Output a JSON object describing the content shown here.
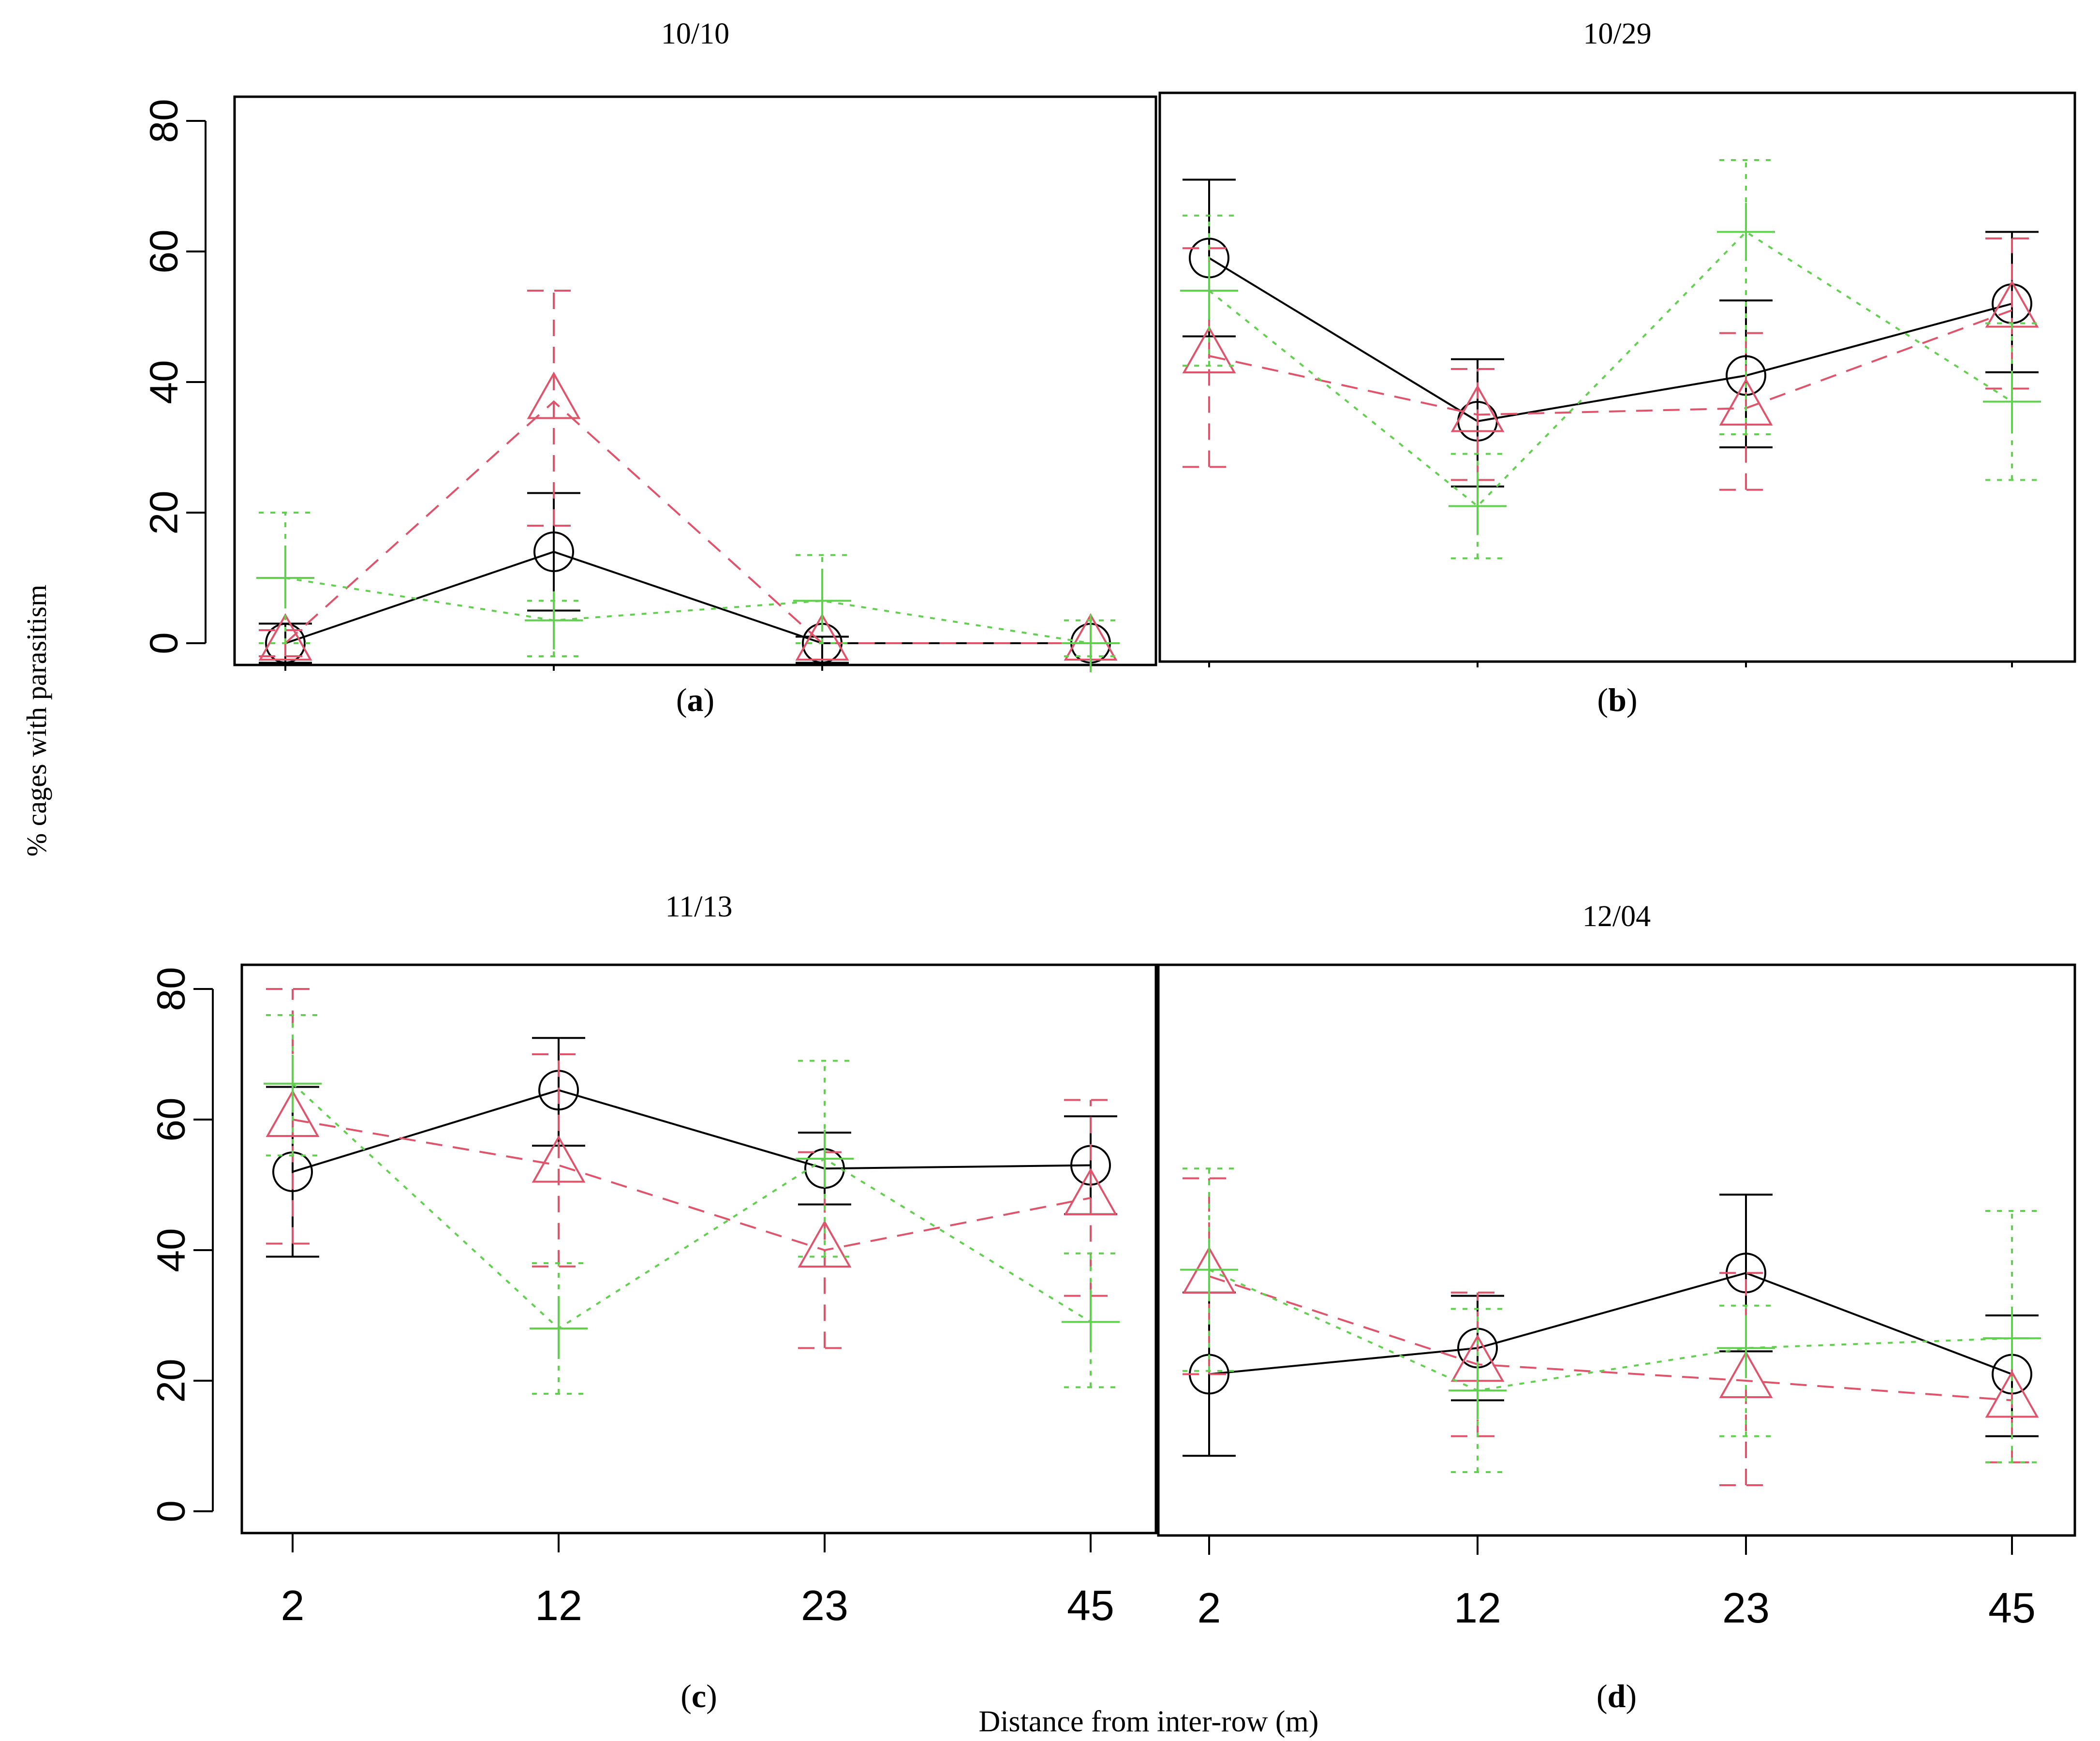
{
  "figure": {
    "ylabel": "% cages with parasitism",
    "xlabel": "Distance from inter-row (m)"
  },
  "colors": {
    "series_a": "#000000",
    "series_b": "#df536b",
    "series_c": "#61d04f"
  },
  "chart_data": [
    {
      "type": "line",
      "title": "10/10",
      "panel_label": "(a)",
      "panel_letter": "a",
      "x": [
        2,
        12,
        23,
        45
      ],
      "categories": [
        "2",
        "12",
        "23",
        "45"
      ],
      "ylim": [
        0,
        80
      ],
      "yticks": [
        "0",
        "20",
        "40",
        "60",
        "80"
      ],
      "series": [
        {
          "name": "circle",
          "values": [
            0,
            14,
            0,
            0
          ],
          "lower": [
            -3,
            5,
            -3,
            null
          ],
          "upper": [
            3,
            23,
            1,
            null
          ]
        },
        {
          "name": "triangle",
          "values": [
            0,
            37,
            0,
            0
          ],
          "lower": [
            -2,
            18,
            null,
            null
          ],
          "upper": [
            2,
            54,
            null,
            null
          ]
        },
        {
          "name": "plus",
          "values": [
            10,
            3.5,
            6.5,
            0
          ],
          "lower": [
            0,
            -2,
            0,
            -2
          ],
          "upper": [
            20,
            6.5,
            13.5,
            3.5
          ]
        }
      ]
    },
    {
      "type": "line",
      "title": "10/29",
      "panel_label": "(b)",
      "panel_letter": "b",
      "x": [
        2,
        12,
        23,
        45
      ],
      "categories": [
        "2",
        "12",
        "23",
        "45"
      ],
      "ylim": [
        0,
        80
      ],
      "yticks": [
        "0",
        "20",
        "40",
        "60",
        "80"
      ],
      "series": [
        {
          "name": "circle",
          "values": [
            59,
            34,
            41,
            52
          ],
          "lower": [
            47,
            24,
            30,
            41.5
          ],
          "upper": [
            71,
            43.5,
            52.5,
            63
          ]
        },
        {
          "name": "triangle",
          "values": [
            44,
            35,
            36,
            51
          ],
          "lower": [
            27,
            25,
            23.5,
            39
          ],
          "upper": [
            60.5,
            42,
            47.5,
            62
          ]
        },
        {
          "name": "plus",
          "values": [
            54,
            21,
            63,
            37
          ],
          "lower": [
            42.5,
            13,
            32,
            25
          ],
          "upper": [
            65.5,
            29,
            74,
            49
          ]
        }
      ]
    },
    {
      "type": "line",
      "title": "11/13",
      "panel_label": "(c)",
      "panel_letter": "c",
      "x": [
        2,
        12,
        23,
        45
      ],
      "categories": [
        "2",
        "12",
        "23",
        "45"
      ],
      "ylim": [
        0,
        80
      ],
      "yticks": [
        "0",
        "20",
        "40",
        "60",
        "80"
      ],
      "series": [
        {
          "name": "circle",
          "values": [
            52,
            64.5,
            52.5,
            53
          ],
          "lower": [
            39,
            56,
            47,
            45.5
          ],
          "upper": [
            65,
            72.5,
            58,
            60.5
          ]
        },
        {
          "name": "triangle",
          "values": [
            60,
            53,
            40,
            48
          ],
          "lower": [
            41,
            37.5,
            25,
            33
          ],
          "upper": [
            80,
            70,
            55,
            63
          ]
        },
        {
          "name": "plus",
          "values": [
            65.5,
            28,
            54,
            29
          ],
          "lower": [
            54.5,
            18,
            39,
            19
          ],
          "upper": [
            76,
            38,
            69,
            39.5
          ]
        }
      ]
    },
    {
      "type": "line",
      "title": "12/04",
      "panel_label": "(d)",
      "panel_letter": "d",
      "x": [
        2,
        12,
        23,
        45
      ],
      "categories": [
        "2",
        "12",
        "23",
        "45"
      ],
      "ylim": [
        0,
        80
      ],
      "yticks": [
        "0",
        "20",
        "40",
        "60",
        "80"
      ],
      "series": [
        {
          "name": "circle",
          "values": [
            21,
            25,
            36.5,
            21
          ],
          "lower": [
            8.5,
            17,
            24.5,
            11.5
          ],
          "upper": [
            33.5,
            33,
            48.5,
            30
          ]
        },
        {
          "name": "triangle",
          "values": [
            36,
            22.5,
            20,
            17
          ],
          "lower": [
            21,
            11.5,
            4,
            7.5
          ],
          "upper": [
            51,
            33.5,
            36.5,
            26.5
          ]
        },
        {
          "name": "plus",
          "values": [
            37,
            18.5,
            25,
            26.5
          ],
          "lower": [
            21.5,
            6,
            11.5,
            7.5
          ],
          "upper": [
            52.5,
            31,
            31.5,
            46
          ]
        }
      ]
    }
  ]
}
